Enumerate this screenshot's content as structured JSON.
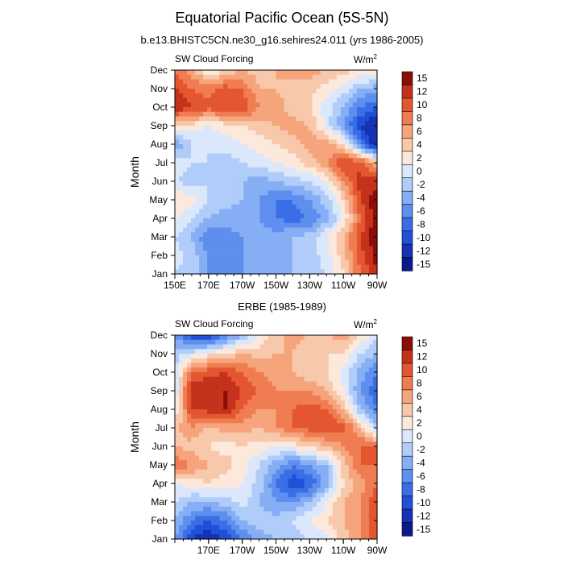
{
  "title": "Equatorial Pacific Ocean (5S-5N)",
  "subtitle": "b.e13.BHISTC5CN.ne30_g16.sehires24.011 (yrs 1986-2005)",
  "colors": {
    "scale": [
      "#0a1a8a",
      "#1532b4",
      "#2050d8",
      "#3a6ee6",
      "#5e8eee",
      "#86aef4",
      "#b0ccf8",
      "#dbe8fb",
      "#fde8dc",
      "#f8c8aa",
      "#f5a47c",
      "#f07c52",
      "#e45630",
      "#c4321c",
      "#8c0e08"
    ]
  },
  "chart_data": [
    {
      "type": "heatmap",
      "id": "model",
      "title": "",
      "left_label": "SW Cloud Forcing",
      "units_label": "W/m",
      "units_sup": "2",
      "ylabel": "Month",
      "x_tick_labels": [
        "150E",
        "170E",
        "170W",
        "150W",
        "130W",
        "110W",
        "90W"
      ],
      "x_tick_values": [
        150,
        170,
        190,
        210,
        230,
        250,
        270
      ],
      "xlim": [
        150,
        270
      ],
      "y_tick_labels": [
        "Jan",
        "Feb",
        "Mar",
        "Apr",
        "May",
        "Jun",
        "Jul",
        "Aug",
        "Sep",
        "Oct",
        "Nov",
        "Dec"
      ],
      "colorbar_labels": [
        "15",
        "12",
        "10",
        "8",
        "6",
        "4",
        "2",
        "0",
        "-2",
        "-4",
        "-6",
        "-8",
        "-10",
        "-12",
        "-15"
      ],
      "x": [
        150,
        160,
        170,
        180,
        190,
        200,
        210,
        220,
        230,
        240,
        250,
        260,
        270
      ],
      "z": [
        [
          -2,
          -3,
          -6,
          -7,
          -6,
          -5,
          -5,
          -4,
          -3,
          -2,
          2,
          8,
          12
        ],
        [
          -1,
          -3,
          -6,
          -8,
          -6,
          -5,
          -5,
          -4,
          -3,
          -1,
          3,
          9,
          13
        ],
        [
          -2,
          -4,
          -8,
          -7,
          -6,
          -5,
          -5,
          -4,
          -3,
          0,
          4,
          10,
          14
        ],
        [
          0,
          -2,
          -4,
          -5,
          -5,
          -6,
          -8,
          -9,
          -8,
          -5,
          0,
          8,
          13
        ],
        [
          2,
          1,
          -2,
          -3,
          -4,
          -6,
          -8,
          -8,
          -6,
          -3,
          2,
          10,
          14
        ],
        [
          -2,
          -3,
          -2,
          -3,
          -4,
          -5,
          -4,
          -3,
          -2,
          0,
          6,
          11,
          11
        ],
        [
          -1,
          -2,
          -2,
          -3,
          -2,
          -1,
          0,
          1,
          3,
          6,
          10,
          9,
          4
        ],
        [
          -6,
          -2,
          -2,
          -1,
          0,
          1,
          2,
          3,
          5,
          5,
          2,
          -8,
          -15
        ],
        [
          2,
          1,
          0,
          1,
          2,
          3,
          4,
          5,
          4,
          -1,
          -6,
          -12,
          -15
        ],
        [
          12,
          10,
          9,
          10,
          10,
          6,
          5,
          3,
          2,
          -1,
          -4,
          -8,
          -10
        ],
        [
          10,
          8,
          7,
          9,
          8,
          4,
          4,
          3,
          3,
          1,
          -1,
          -4,
          -5
        ],
        [
          8,
          5,
          0,
          2,
          4,
          3,
          4,
          5,
          5,
          4,
          3,
          2,
          2
        ]
      ]
    },
    {
      "type": "heatmap",
      "id": "obs",
      "title": "ERBE (1985-1989)",
      "left_label": "SW Cloud Forcing",
      "units_label": "W/m",
      "units_sup": "2",
      "ylabel": "Month",
      "x_tick_labels": [
        "170E",
        "170W",
        "150W",
        "130W",
        "110W",
        "90W"
      ],
      "x_tick_values": [
        170,
        190,
        210,
        230,
        250,
        270
      ],
      "xlim": [
        150,
        270
      ],
      "y_tick_labels": [
        "Jan",
        "Feb",
        "Mar",
        "Apr",
        "May",
        "Jun",
        "Jul",
        "Aug",
        "Sep",
        "Oct",
        "Nov",
        "Dec"
      ],
      "colorbar_labels": [
        "15",
        "12",
        "10",
        "8",
        "6",
        "4",
        "2",
        "0",
        "-2",
        "-4",
        "-6",
        "-8",
        "-10",
        "-12",
        "-15"
      ],
      "x": [
        150,
        160,
        170,
        180,
        190,
        200,
        210,
        220,
        230,
        240,
        250,
        260,
        270
      ],
      "z": [
        [
          -6,
          -12,
          -14,
          -12,
          -8,
          -5,
          -4,
          -3,
          -2,
          -1,
          3,
          6,
          10
        ],
        [
          -4,
          -8,
          -10,
          -8,
          -4,
          -3,
          -3,
          -2,
          0,
          2,
          4,
          6,
          10
        ],
        [
          -2,
          -4,
          -4,
          -3,
          -1,
          -4,
          -6,
          -6,
          -4,
          0,
          4,
          6,
          10
        ],
        [
          0,
          1,
          2,
          1,
          0,
          -3,
          -8,
          -12,
          -10,
          -5,
          2,
          5,
          8
        ],
        [
          8,
          6,
          4,
          3,
          1,
          -2,
          -5,
          -8,
          -6,
          -4,
          3,
          8,
          8
        ],
        [
          4,
          3,
          2,
          1,
          2,
          1,
          0,
          1,
          2,
          4,
          6,
          8,
          8
        ],
        [
          3,
          6,
          3,
          5,
          5,
          4,
          6,
          8,
          9,
          10,
          9,
          4,
          -4
        ],
        [
          0,
          10,
          11,
          12,
          8,
          6,
          6,
          8,
          9,
          8,
          4,
          -4,
          -8
        ],
        [
          -2,
          12,
          12,
          12,
          10,
          8,
          6,
          6,
          6,
          4,
          0,
          -6,
          -10
        ],
        [
          -2,
          8,
          9,
          10,
          8,
          6,
          5,
          4,
          2,
          2,
          -1,
          -5,
          -8
        ],
        [
          -3,
          -1,
          1,
          2,
          4,
          3,
          4,
          4,
          2,
          2,
          2,
          -2,
          -4
        ],
        [
          -6,
          -12,
          -12,
          -8,
          -4,
          0,
          3,
          5,
          4,
          4,
          5,
          2,
          -2
        ]
      ]
    }
  ]
}
